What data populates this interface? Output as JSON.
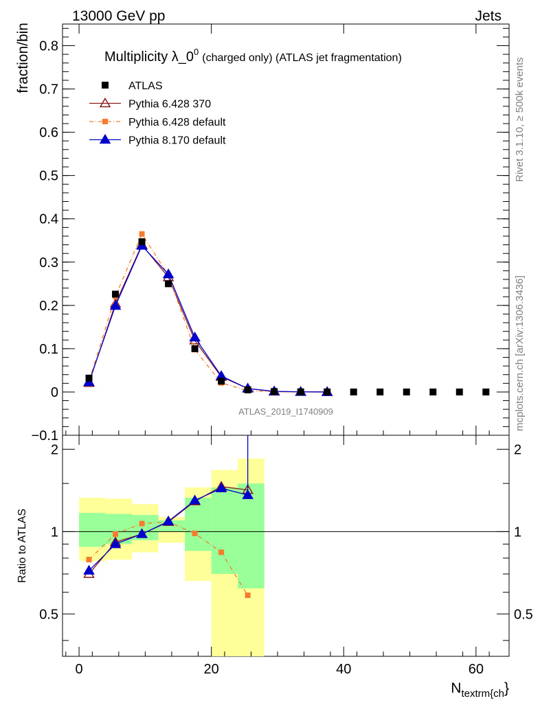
{
  "header": {
    "energy_label": "13000 GeV pp",
    "process_label": "Jets",
    "side_label_top": "Rivet 3.1.10, ≥ 500k events",
    "side_label_bottom": "mcplots.cern.ch [arXiv:1306.3436]"
  },
  "chart_data": {
    "type": "line",
    "title": "Multiplicity λ_0",
    "title_superscript": "0",
    "title_suffix": "(charged only) (ATLAS jet fragmentation)",
    "watermark": "ATLAS_2019_I1740909",
    "xlabel": "N",
    "xlabel_subscript": "textrm{ch",
    "xlabel_suffix": "}",
    "ylabel": "fraction/bin",
    "ratio_ylabel": "Ratio to ATLAS",
    "xlim": [
      -2.5,
      65
    ],
    "ylim": [
      -0.1,
      0.85
    ],
    "ratio_ylim": [
      0.35,
      2.25
    ],
    "x_ticks": [
      0,
      20,
      40,
      60
    ],
    "y_ticks": [
      -0.1,
      0,
      0.1,
      0.2,
      0.3,
      0.4,
      0.5,
      0.6,
      0.7,
      0.8
    ],
    "ratio_ticks": [
      0.5,
      1,
      2
    ],
    "tick_labels": {
      "x": [
        "0",
        "20",
        "40",
        "60"
      ],
      "y": [
        "−0.1",
        "0",
        "0.1",
        "0.2",
        "0.3",
        "0.4",
        "0.5",
        "0.6",
        "0.7",
        "0.8"
      ],
      "ratio": [
        "0.5",
        "1",
        "2"
      ]
    },
    "legend_position": "top-left",
    "grid": false,
    "data": {
      "name": "ATLAS",
      "x": [
        1.5,
        5.5,
        9.5,
        13.5,
        17.5,
        21.5,
        25.5,
        29.5,
        33.5,
        37.5,
        41.5,
        45.5,
        49.5,
        53.5,
        57.5,
        61.5
      ],
      "y": [
        0.032,
        0.226,
        0.347,
        0.25,
        0.1,
        0.025,
        0.005,
        0.001,
        0.0003,
        0.0001,
        0,
        0,
        0,
        0,
        0,
        0
      ],
      "bin_edges_for_band": [
        0,
        4,
        8,
        12,
        16,
        20,
        24,
        28
      ],
      "band_inner": [
        [
          0.88,
          1.17
        ],
        [
          0.9,
          1.16
        ],
        [
          0.93,
          1.15
        ],
        [
          1.0,
          1.1
        ],
        [
          0.85,
          1.33
        ],
        [
          0.7,
          1.45
        ],
        [
          0.62,
          1.5
        ]
      ],
      "band_outer": [
        [
          0.78,
          1.33
        ],
        [
          0.79,
          1.32
        ],
        [
          0.84,
          1.26
        ],
        [
          0.91,
          1.13
        ],
        [
          0.66,
          1.45
        ],
        [
          0.35,
          1.68
        ],
        [
          0.35,
          1.85
        ]
      ]
    },
    "series": [
      {
        "name": "Pythia 6.428 370",
        "color": "#8b1a1a",
        "marker": "open-triangle",
        "style": "solid",
        "x": [
          1.5,
          5.5,
          9.5,
          13.5,
          17.5,
          21.5,
          25.5,
          29.5,
          33.5,
          37.5
        ],
        "y": [
          0.021,
          0.204,
          0.34,
          0.265,
          0.119,
          0.035,
          0.008,
          0.001,
          0.0002,
          0
        ],
        "ratio": [
          0.7,
          0.915,
          0.98,
          1.085,
          1.29,
          1.46,
          1.42
        ]
      },
      {
        "name": "Pythia 6.428 default",
        "color": "#f47c2c",
        "marker": "square",
        "style": "dashdot",
        "x": [
          1.5,
          5.5,
          9.5,
          13.5,
          17.5,
          21.5,
          25.5,
          29.5,
          33.5,
          37.5
        ],
        "y": [
          0.025,
          0.221,
          0.365,
          0.27,
          0.098,
          0.021,
          0.003,
          0.0005,
          0.0001,
          0
        ],
        "ratio": [
          0.79,
          0.98,
          1.07,
          1.085,
          0.985,
          0.84,
          0.585
        ]
      },
      {
        "name": "Pythia 8.170 default",
        "color": "#0000cc",
        "marker": "filled-triangle",
        "style": "solid",
        "x": [
          1.5,
          5.5,
          9.5,
          13.5,
          17.5,
          21.5,
          25.5,
          29.5,
          33.5,
          37.5
        ],
        "y": [
          0.023,
          0.199,
          0.338,
          0.272,
          0.126,
          0.037,
          0.008,
          0.0015,
          0.0003,
          0
        ],
        "ratio": [
          0.72,
          0.9,
          0.98,
          1.09,
          1.3,
          1.44,
          1.36
        ]
      }
    ]
  }
}
